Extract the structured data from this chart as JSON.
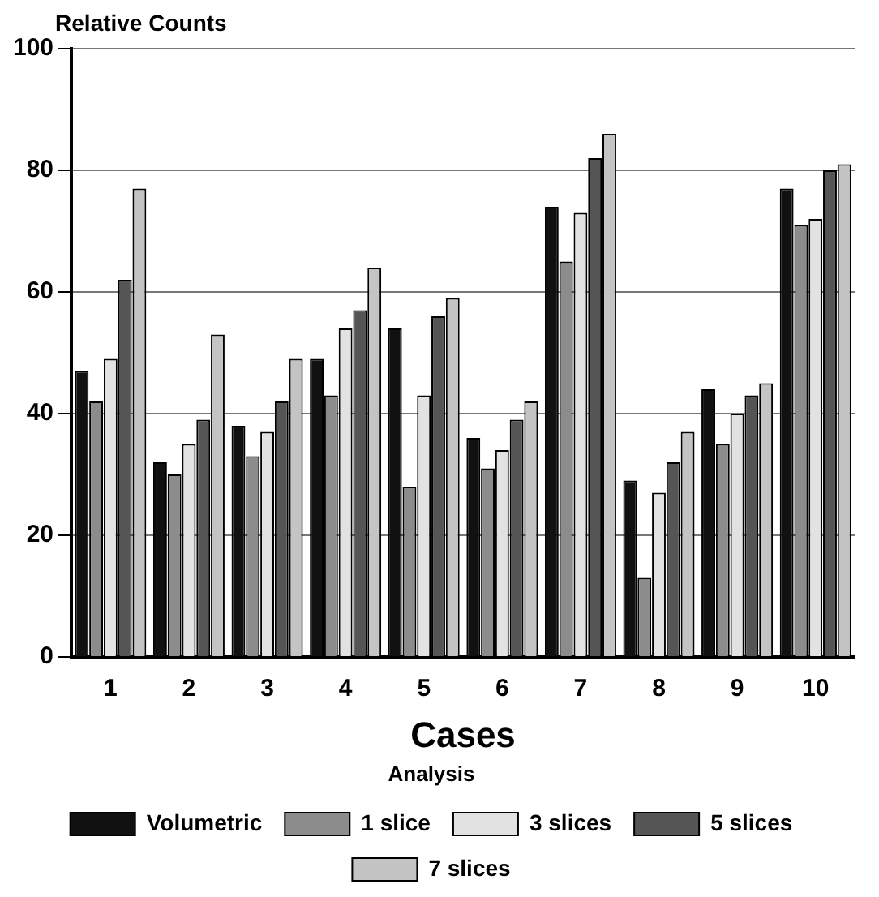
{
  "chart_data": {
    "type": "bar",
    "ylabel": "Relative Counts",
    "xlabel": "Cases",
    "legend_title": "Analysis",
    "categories": [
      "1",
      "2",
      "3",
      "4",
      "5",
      "6",
      "7",
      "8",
      "9",
      "10"
    ],
    "series": [
      {
        "name": "Volumetric",
        "color": "#111111",
        "values": [
          47,
          32,
          38,
          49,
          54,
          36,
          74,
          29,
          44,
          77
        ]
      },
      {
        "name": "1 slice",
        "color": "#8c8c8c",
        "values": [
          42,
          30,
          33,
          43,
          28,
          31,
          65,
          13,
          35,
          71
        ]
      },
      {
        "name": "3 slices",
        "color": "#e2e2e2",
        "values": [
          49,
          35,
          37,
          54,
          43,
          34,
          73,
          27,
          40,
          72
        ]
      },
      {
        "name": "5 slices",
        "color": "#555555",
        "values": [
          62,
          39,
          42,
          57,
          56,
          39,
          82,
          32,
          43,
          80
        ]
      },
      {
        "name": "7 slices",
        "color": "#c4c4c4",
        "values": [
          77,
          53,
          49,
          64,
          59,
          42,
          86,
          37,
          45,
          81
        ]
      }
    ],
    "ylim": [
      0,
      100
    ],
    "yticks": [
      0,
      20,
      40,
      60,
      80,
      100
    ],
    "grid": "y",
    "legend": "bottom"
  }
}
